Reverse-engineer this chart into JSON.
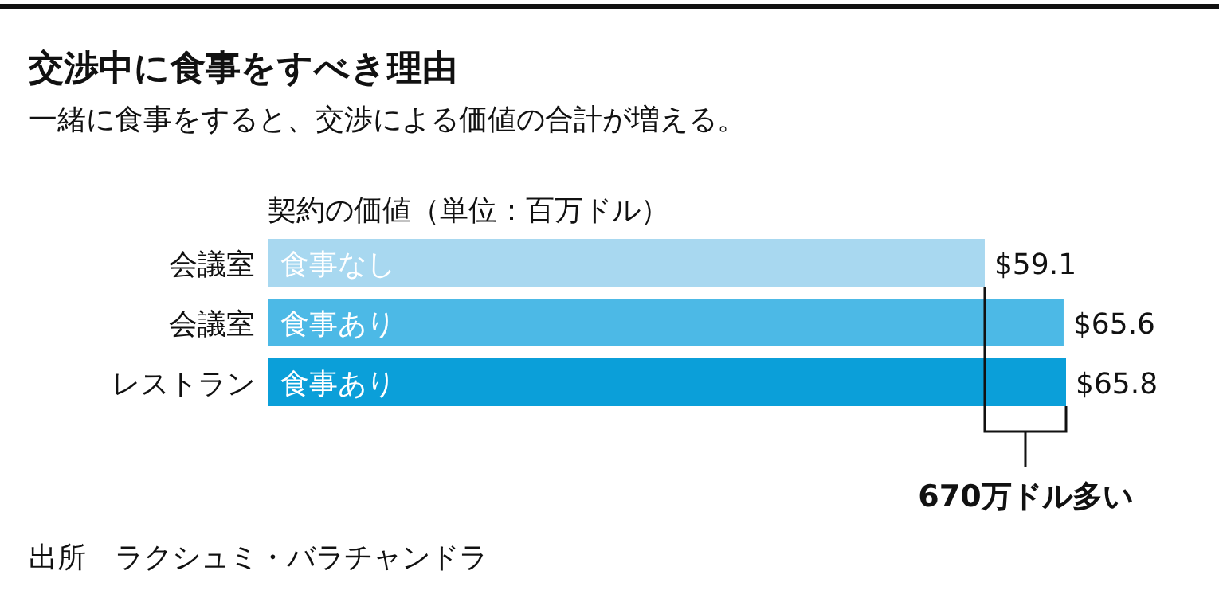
{
  "chart_data": {
    "type": "bar",
    "orientation": "horizontal",
    "title": "交渉中に食事をすべき理由",
    "subtitle": "一緒に食事をすると、交渉による価値の合計が増える。",
    "xlabel": "契約の価値（単位：百万ドル）",
    "categories": [
      "会議室",
      "会議室",
      "レストラン"
    ],
    "values": [
      59.1,
      65.6,
      65.8
    ],
    "colors": [
      "#a8d8f0",
      "#4cb9e6",
      "#0b9fd9"
    ],
    "value_labels": [
      "$59.1",
      "$65.6",
      "$65.8"
    ],
    "annotations": [
      "食事なし",
      "食事あり",
      "食事あり",
      "670万ドル多い",
      "出所　ラクシュミ・バラチャンドラ"
    ]
  }
}
